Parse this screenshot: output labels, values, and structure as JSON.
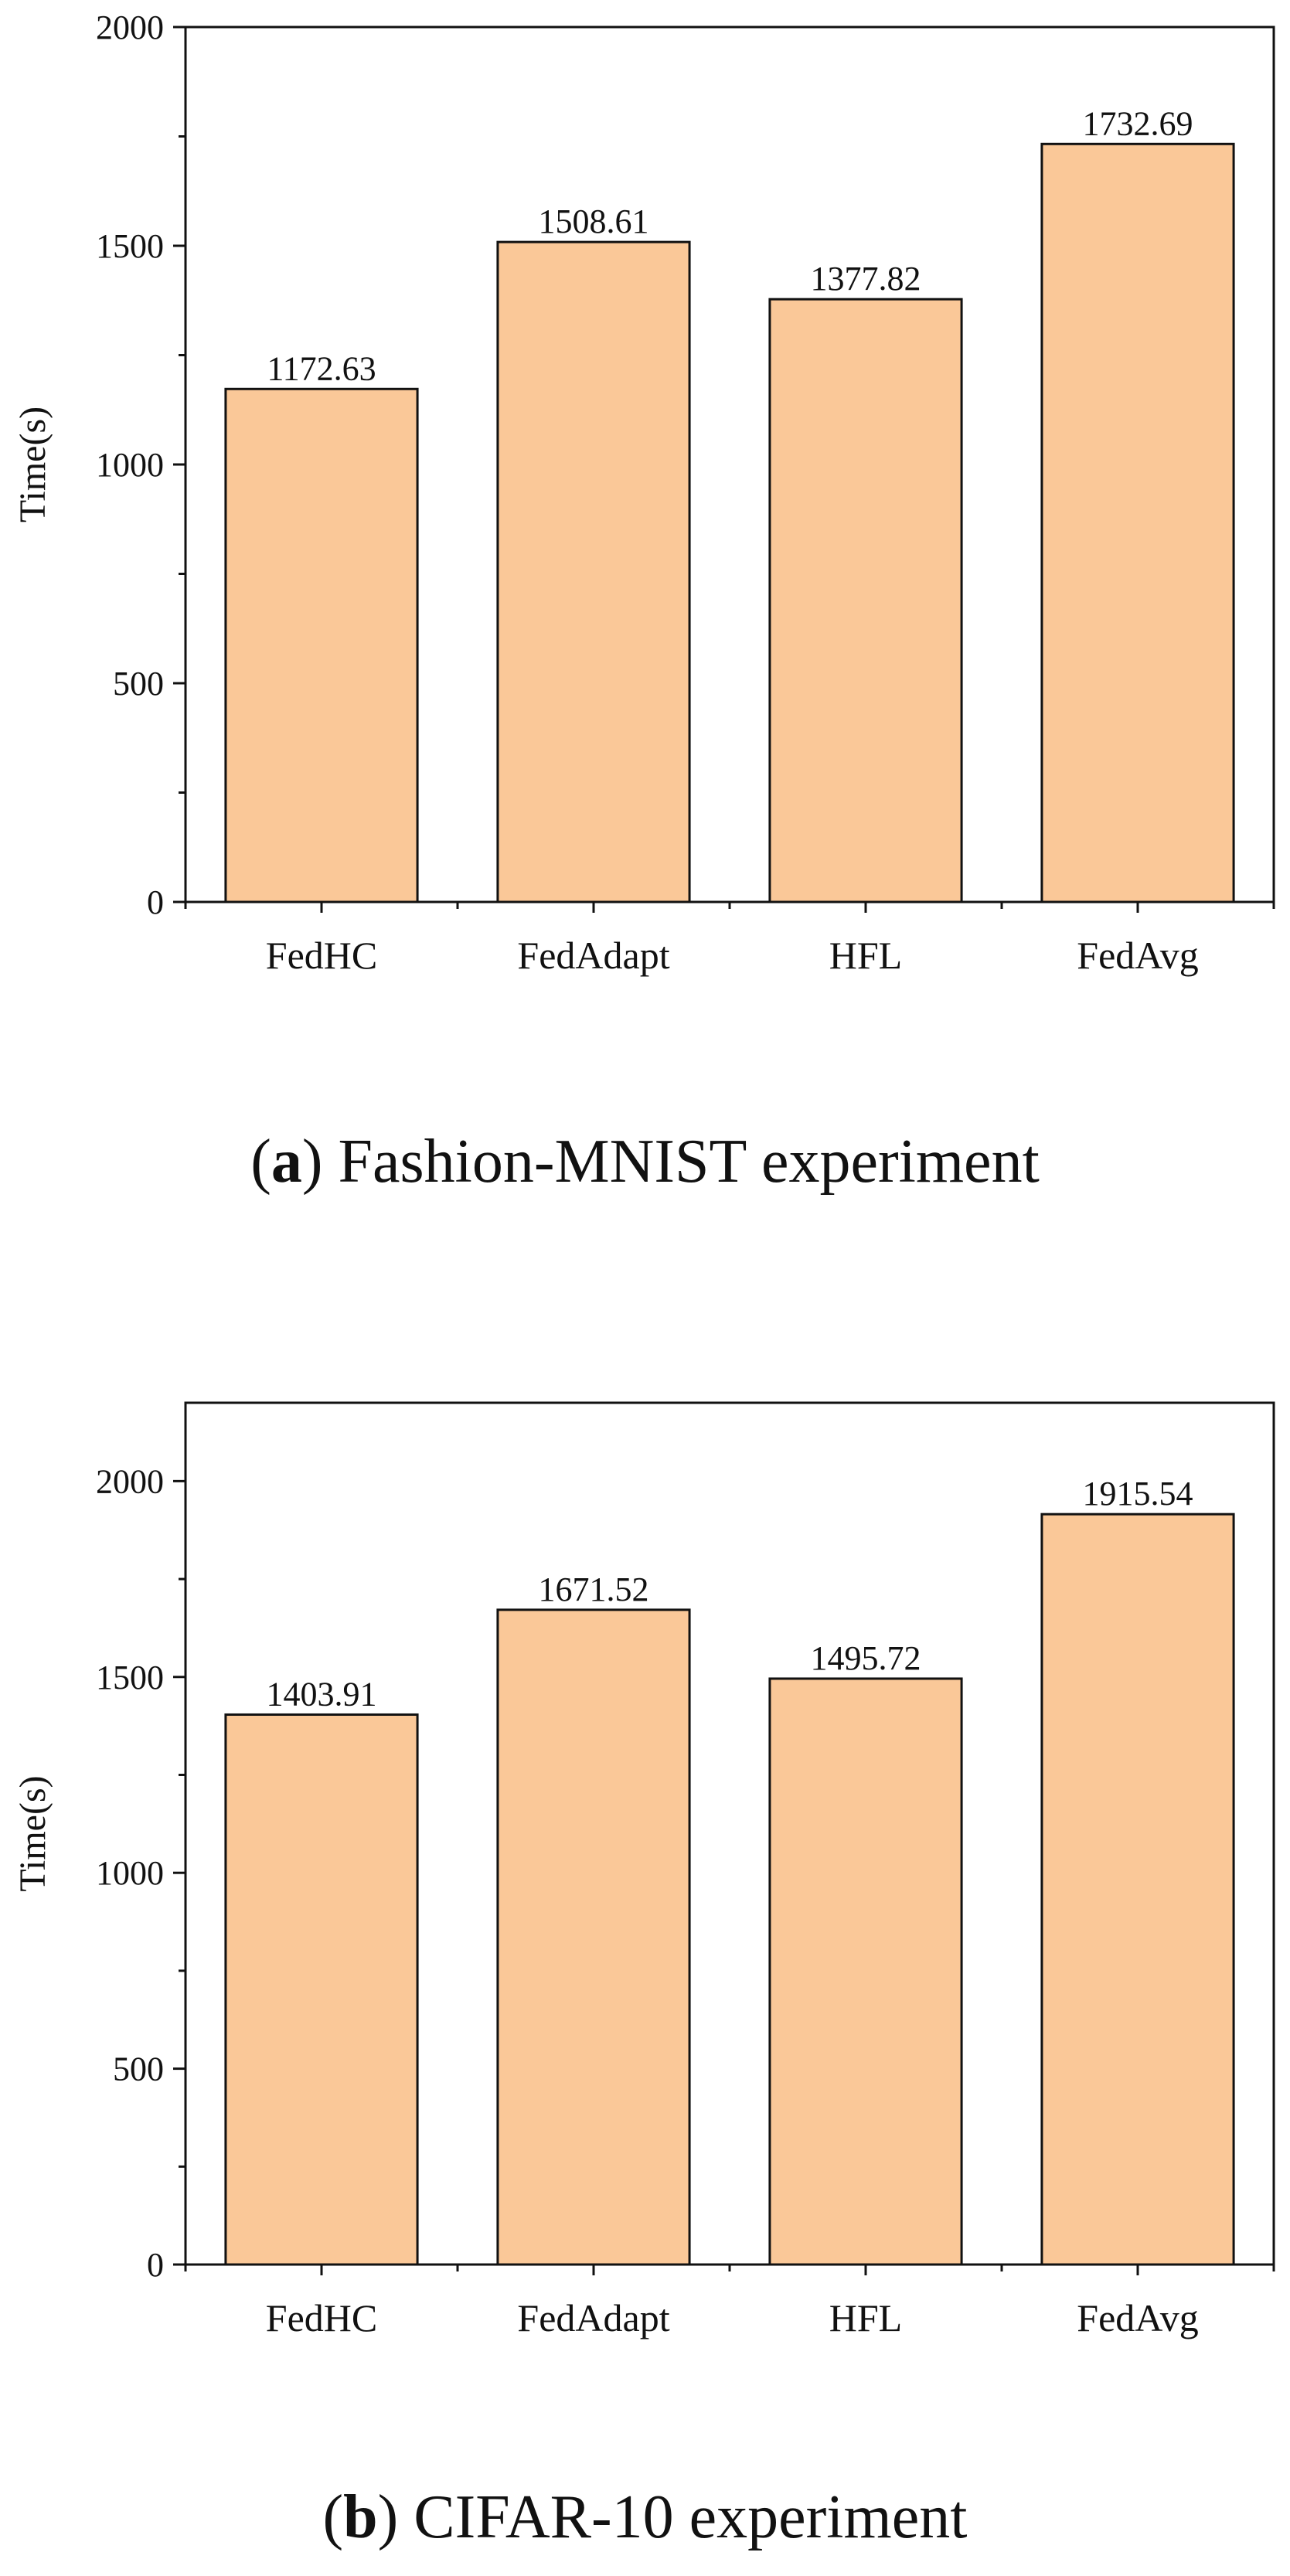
{
  "figures": [
    {
      "caption_letter": "a",
      "caption_text": "Fashion-MNIST experiment"
    },
    {
      "caption_letter": "b",
      "caption_text": "CIFAR-10 experiment"
    }
  ],
  "chart_data": [
    {
      "type": "bar",
      "categories": [
        "FedHC",
        "FedAdapt",
        "HFL",
        "FedAvg"
      ],
      "values": [
        1172.63,
        1508.61,
        1377.82,
        1732.69
      ],
      "data_labels": [
        "1172.63",
        "1508.61",
        "1377.82",
        "1732.69"
      ],
      "ylabel": "Time(s)",
      "xlabel": "",
      "ylim": [
        0,
        2000
      ],
      "yticks": [
        0,
        500,
        1000,
        1500,
        2000
      ],
      "bar_color": "#FAC898",
      "grid": false
    },
    {
      "type": "bar",
      "categories": [
        "FedHC",
        "FedAdapt",
        "HFL",
        "FedAvg"
      ],
      "values": [
        1403.91,
        1671.52,
        1495.72,
        1915.54
      ],
      "data_labels": [
        "1403.91",
        "1671.52",
        "1495.72",
        "1915.54"
      ],
      "ylabel": "Time(s)",
      "xlabel": "",
      "ylim": [
        0,
        2200
      ],
      "yticks": [
        0,
        500,
        1000,
        1500,
        2000
      ],
      "bar_color": "#FAC898",
      "grid": false
    }
  ]
}
